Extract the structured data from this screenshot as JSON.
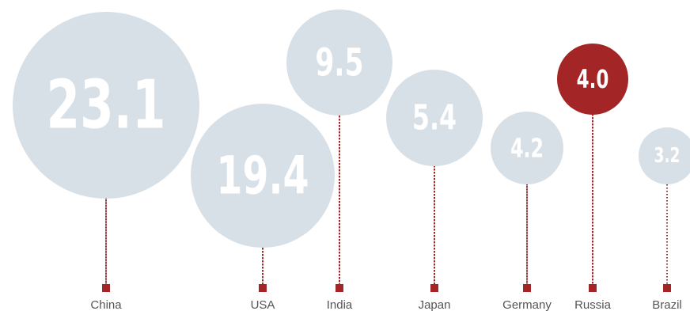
{
  "chart_data": {
    "type": "bubble",
    "categories": [
      "China",
      "USA",
      "India",
      "Japan",
      "Germany",
      "Russia",
      "Brazil"
    ],
    "values": [
      23.1,
      19.4,
      9.5,
      5.4,
      4.2,
      4.0,
      3.2
    ],
    "value_labels": [
      "23.1",
      "19.4",
      "9.5",
      "5.4",
      "4.2",
      "4.0",
      "3.2"
    ],
    "highlight": "Russia",
    "title": "",
    "xlabel": "",
    "ylabel": ""
  },
  "colors": {
    "bubble": "#d8e0e7",
    "highlight": "#a32525",
    "marker": "#a32525",
    "label": "#555555",
    "highlight_label": "#c0504d"
  }
}
